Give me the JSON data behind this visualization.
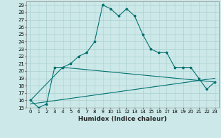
{
  "xlabel": "Humidex (Indice chaleur)",
  "ylabel": "",
  "background_color": "#cce8e8",
  "grid_color": "#aacfcf",
  "line_color": "#007070",
  "xlim": [
    -0.5,
    23.5
  ],
  "ylim": [
    15,
    29.5
  ],
  "x_ticks": [
    0,
    1,
    2,
    3,
    4,
    5,
    6,
    7,
    8,
    9,
    10,
    11,
    12,
    13,
    14,
    15,
    16,
    17,
    18,
    19,
    20,
    21,
    22,
    23
  ],
  "y_ticks": [
    15,
    16,
    17,
    18,
    19,
    20,
    21,
    22,
    23,
    24,
    25,
    26,
    27,
    28,
    29
  ],
  "line1_x": [
    0,
    1,
    2,
    3,
    4,
    5,
    6,
    7,
    8,
    9,
    10,
    11,
    12,
    13,
    14,
    15,
    16,
    17,
    18,
    19,
    20,
    21,
    22,
    23
  ],
  "line1_y": [
    16,
    15,
    15.5,
    20.5,
    20.5,
    21,
    22,
    22.5,
    24,
    29,
    28.5,
    27.5,
    28.5,
    27.5,
    25,
    23,
    22.5,
    22.5,
    20.5,
    20.5,
    20.5,
    19,
    17.5,
    18.5
  ],
  "line2_x": [
    0,
    4,
    23
  ],
  "line2_y": [
    16,
    20.5,
    18.5
  ],
  "line3_x": [
    0,
    23
  ],
  "line3_y": [
    15.5,
    19
  ],
  "marker_size": 2.5,
  "linewidth": 0.8,
  "font_size_label": 6.5,
  "font_size_tick": 5
}
